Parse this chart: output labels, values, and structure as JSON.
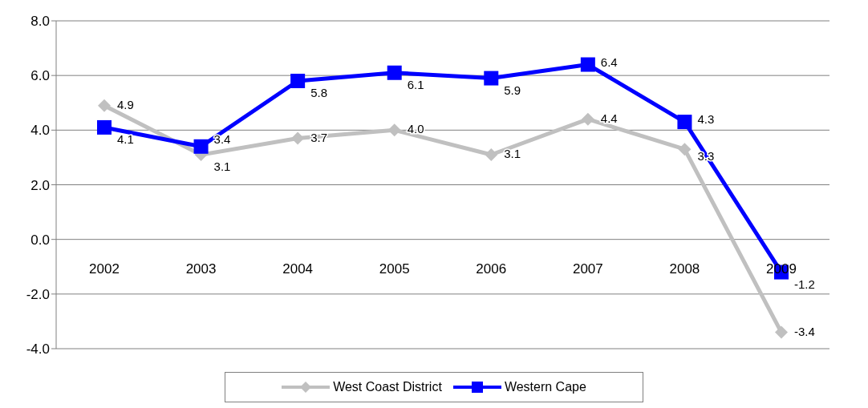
{
  "chart_data": {
    "type": "line",
    "categories": [
      "2002",
      "2003",
      "2004",
      "2005",
      "2006",
      "2007",
      "2008",
      "2009"
    ],
    "series": [
      {
        "name": "West Coast District",
        "color": "#c0c0c0",
        "marker": "diamond",
        "values": [
          4.9,
          3.1,
          3.7,
          4.0,
          3.1,
          4.4,
          3.3,
          -3.4
        ],
        "value_labels": [
          "4.9",
          "3.1",
          "3.7",
          "4.0",
          "3.1",
          "4.4",
          "3.3",
          "-3.4"
        ]
      },
      {
        "name": "Western Cape",
        "color": "#0000ff",
        "marker": "square",
        "values": [
          4.1,
          3.4,
          5.8,
          6.1,
          5.9,
          6.4,
          4.3,
          -1.2
        ],
        "value_labels": [
          "4.1",
          "3.4",
          "5.8",
          "6.1",
          "5.9",
          "6.4",
          "4.3",
          "-1.2"
        ]
      }
    ],
    "ylim": [
      -4,
      8
    ],
    "yticks": [
      {
        "value": -4,
        "label": "-4.0"
      },
      {
        "value": -2,
        "label": "-2.0"
      },
      {
        "value": 0,
        "label": "0.0"
      },
      {
        "value": 2,
        "label": "2.0"
      },
      {
        "value": 4,
        "label": "4.0"
      },
      {
        "value": 6,
        "label": "6.0"
      },
      {
        "value": 8,
        "label": "8.0"
      }
    ],
    "grid": "y",
    "legend": "bottom",
    "line_style": "solid"
  }
}
